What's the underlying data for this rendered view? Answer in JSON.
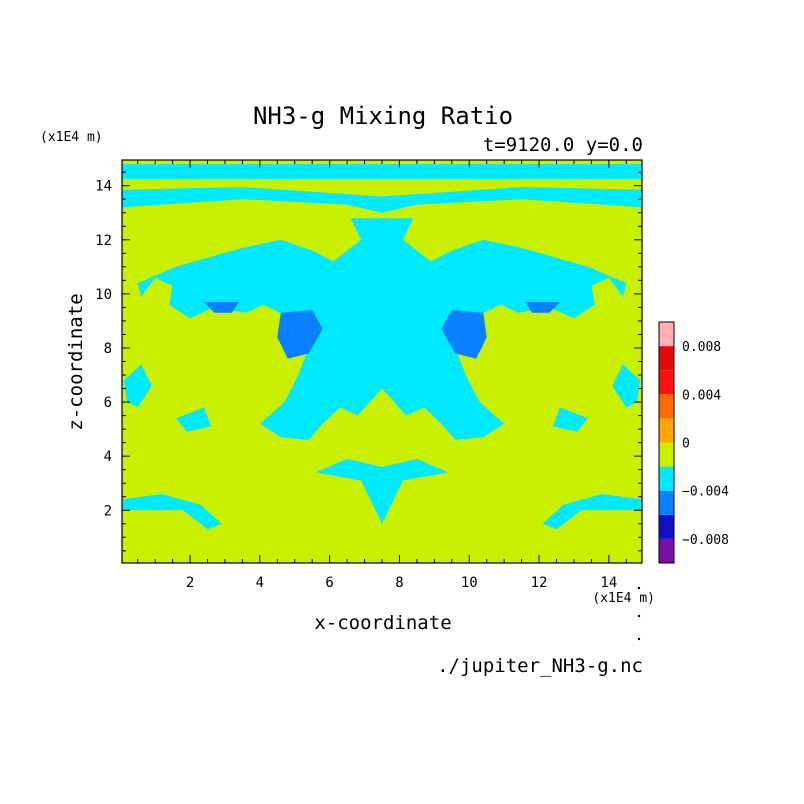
{
  "chart_data": {
    "type": "heatmap",
    "title": "NH3-g Mixing Ratio",
    "subtitle": "t=9120.0 y=0.0",
    "xlabel": "x-coordinate",
    "ylabel": "z-coordinate",
    "x_unit": "(x1E4 m)",
    "y_unit": "(x1E4 m)",
    "xlim": [
      0.05,
      14.95
    ],
    "ylim": [
      0.05,
      14.95
    ],
    "x_ticks": [
      2,
      4,
      6,
      8,
      10,
      12,
      14
    ],
    "y_ticks": [
      2,
      4,
      6,
      8,
      10,
      12,
      14
    ],
    "x_tick_labels": [
      "2",
      "4",
      "6",
      "8",
      "10",
      "12",
      "14"
    ],
    "y_tick_labels": [
      "2",
      "4",
      "6",
      "8",
      "10",
      "12",
      "14"
    ],
    "file_label": "./jupiter_NH3-g.nc",
    "colorbar": {
      "boundaries": [
        -0.01,
        -0.008,
        -0.006,
        -0.004,
        -0.002,
        0.0,
        0.002,
        0.004,
        0.006,
        0.008,
        0.01
      ],
      "colors": [
        "#7a0ea8",
        "#1010c8",
        "#0a7fff",
        "#00eaff",
        "#c8f000",
        "#ffa500",
        "#ff6a00",
        "#ff1010",
        "#e00a0a",
        "#ffb0b0"
      ],
      "tick_values": [
        -0.008,
        -0.004,
        0,
        0.004,
        0.008
      ],
      "tick_labels": [
        "−0.008",
        "−0.004",
        "0",
        "0.004",
        "0.008"
      ]
    },
    "background_level_color": "#c8f000",
    "regions": [
      {
        "level": "cyan",
        "color": "#00eaff",
        "points": [
          [
            0.05,
            14.25
          ],
          [
            14.95,
            14.25
          ],
          [
            14.95,
            14.8
          ],
          [
            0.05,
            14.8
          ]
        ]
      },
      {
        "level": "cyan",
        "color": "#00eaff",
        "points": [
          [
            0.05,
            13.2
          ],
          [
            3.5,
            13.5
          ],
          [
            6.5,
            13.3
          ],
          [
            7.5,
            13.0
          ],
          [
            8.5,
            13.3
          ],
          [
            11.5,
            13.5
          ],
          [
            14.95,
            13.2
          ],
          [
            14.95,
            13.85
          ],
          [
            11.5,
            13.95
          ],
          [
            7.5,
            13.6
          ],
          [
            3.5,
            13.95
          ],
          [
            0.05,
            13.85
          ]
        ]
      },
      {
        "level": "cyan",
        "color": "#00eaff",
        "points": [
          [
            6.6,
            12.8
          ],
          [
            8.4,
            12.8
          ],
          [
            8.1,
            12.0
          ],
          [
            8.9,
            11.2
          ],
          [
            9.5,
            11.6
          ],
          [
            10.4,
            12.0
          ],
          [
            11.5,
            11.7
          ],
          [
            12.6,
            11.3
          ],
          [
            13.4,
            11.0
          ],
          [
            14.5,
            10.4
          ],
          [
            14.4,
            9.9
          ],
          [
            14.0,
            10.6
          ],
          [
            13.5,
            10.3
          ],
          [
            13.6,
            9.6
          ],
          [
            13.0,
            9.1
          ],
          [
            12.3,
            9.5
          ],
          [
            11.4,
            9.3
          ],
          [
            10.9,
            9.6
          ],
          [
            10.1,
            9.1
          ],
          [
            9.6,
            8.0
          ],
          [
            9.9,
            7.0
          ],
          [
            10.3,
            6.0
          ],
          [
            11.0,
            5.2
          ],
          [
            10.4,
            4.7
          ],
          [
            9.6,
            4.6
          ],
          [
            9.2,
            5.2
          ],
          [
            8.7,
            5.8
          ],
          [
            8.2,
            5.5
          ],
          [
            7.5,
            6.5
          ],
          [
            6.8,
            5.5
          ],
          [
            6.3,
            5.8
          ],
          [
            5.8,
            5.2
          ],
          [
            5.4,
            4.6
          ],
          [
            4.6,
            4.7
          ],
          [
            4.0,
            5.2
          ],
          [
            4.7,
            6.0
          ],
          [
            5.1,
            7.0
          ],
          [
            5.4,
            8.0
          ],
          [
            4.9,
            9.1
          ],
          [
            4.1,
            9.6
          ],
          [
            3.6,
            9.3
          ],
          [
            2.7,
            9.5
          ],
          [
            2.0,
            9.1
          ],
          [
            1.4,
            9.6
          ],
          [
            1.5,
            10.3
          ],
          [
            1.0,
            10.6
          ],
          [
            0.6,
            9.9
          ],
          [
            0.5,
            10.4
          ],
          [
            1.6,
            11.0
          ],
          [
            2.4,
            11.3
          ],
          [
            3.5,
            11.7
          ],
          [
            4.6,
            12.0
          ],
          [
            5.5,
            11.6
          ],
          [
            6.1,
            11.2
          ],
          [
            6.9,
            12.0
          ]
        ]
      },
      {
        "level": "cyan",
        "color": "#00eaff",
        "points": [
          [
            5.6,
            3.4
          ],
          [
            6.9,
            3.1
          ],
          [
            7.5,
            1.5
          ],
          [
            8.1,
            3.1
          ],
          [
            9.4,
            3.4
          ],
          [
            8.5,
            3.9
          ],
          [
            7.5,
            3.6
          ],
          [
            6.5,
            3.9
          ]
        ]
      },
      {
        "level": "cyan",
        "color": "#00eaff",
        "points": [
          [
            0.05,
            2.4
          ],
          [
            1.2,
            2.6
          ],
          [
            2.3,
            2.2
          ],
          [
            2.9,
            1.5
          ],
          [
            2.5,
            1.3
          ],
          [
            1.8,
            2.0
          ],
          [
            0.05,
            2.0
          ]
        ]
      },
      {
        "level": "cyan",
        "color": "#00eaff",
        "points": [
          [
            14.95,
            2.4
          ],
          [
            13.8,
            2.6
          ],
          [
            12.7,
            2.2
          ],
          [
            12.1,
            1.5
          ],
          [
            12.5,
            1.3
          ],
          [
            13.2,
            2.0
          ],
          [
            14.95,
            2.0
          ]
        ]
      },
      {
        "level": "cyan",
        "color": "#00eaff",
        "points": [
          [
            0.1,
            6.8
          ],
          [
            0.6,
            7.4
          ],
          [
            0.9,
            6.6
          ],
          [
            0.5,
            5.8
          ],
          [
            0.2,
            6.0
          ]
        ]
      },
      {
        "level": "cyan",
        "color": "#00eaff",
        "points": [
          [
            14.9,
            6.8
          ],
          [
            14.4,
            7.4
          ],
          [
            14.1,
            6.6
          ],
          [
            14.5,
            5.8
          ],
          [
            14.8,
            6.0
          ]
        ]
      },
      {
        "level": "cyan",
        "color": "#00eaff",
        "points": [
          [
            1.6,
            5.4
          ],
          [
            2.4,
            5.8
          ],
          [
            2.6,
            5.1
          ],
          [
            1.9,
            4.9
          ]
        ]
      },
      {
        "level": "cyan",
        "color": "#00eaff",
        "points": [
          [
            13.4,
            5.4
          ],
          [
            12.6,
            5.8
          ],
          [
            12.4,
            5.1
          ],
          [
            13.1,
            4.9
          ]
        ]
      },
      {
        "level": "blue",
        "color": "#0a7fff",
        "points": [
          [
            4.6,
            9.3
          ],
          [
            5.5,
            9.4
          ],
          [
            5.8,
            8.7
          ],
          [
            5.4,
            7.8
          ],
          [
            4.8,
            7.6
          ],
          [
            4.5,
            8.4
          ]
        ]
      },
      {
        "level": "blue",
        "color": "#0a7fff",
        "points": [
          [
            10.4,
            9.3
          ],
          [
            9.5,
            9.4
          ],
          [
            9.2,
            8.7
          ],
          [
            9.6,
            7.8
          ],
          [
            10.2,
            7.6
          ],
          [
            10.5,
            8.4
          ]
        ]
      },
      {
        "level": "blue",
        "color": "#0a7fff",
        "points": [
          [
            2.4,
            9.7
          ],
          [
            3.4,
            9.7
          ],
          [
            3.2,
            9.3
          ],
          [
            2.7,
            9.3
          ]
        ]
      },
      {
        "level": "blue",
        "color": "#0a7fff",
        "points": [
          [
            12.6,
            9.7
          ],
          [
            11.6,
            9.7
          ],
          [
            11.8,
            9.3
          ],
          [
            12.3,
            9.3
          ]
        ]
      }
    ]
  }
}
